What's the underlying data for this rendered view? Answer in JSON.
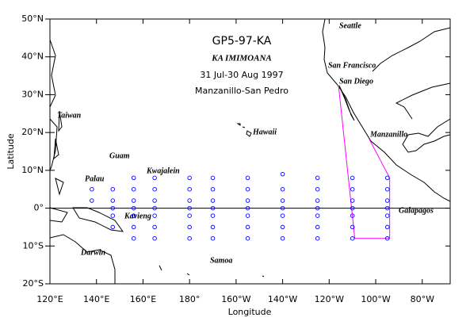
{
  "chart_data": {
    "type": "scatter",
    "title": "GP5-97-KA",
    "subtitle": "KA IMIMOANA",
    "annotations": [
      "31 Jul-30 Aug 1997",
      "Manzanillo-San Pedro"
    ],
    "places": [
      "Seattle",
      "San Francisco",
      "San Diego",
      "Manzanillo",
      "Taiwan",
      "Hawaii",
      "Guam",
      "Palau",
      "Kwajalein",
      "Kavieng",
      "Galapagos",
      "Darwin",
      "Samoa"
    ],
    "x_label": "Longitude",
    "y_label": "Latitude",
    "xlim": [
      120,
      292
    ],
    "ylim": [
      -20,
      50
    ],
    "xticks": [
      {
        "value": 120,
        "label": "120°E"
      },
      {
        "value": 140,
        "label": "140°E"
      },
      {
        "value": 160,
        "label": "160°E"
      },
      {
        "value": 180,
        "label": "180°"
      },
      {
        "value": 200,
        "label": "160°W"
      },
      {
        "value": 220,
        "label": "140°W"
      },
      {
        "value": 240,
        "label": "120°W"
      },
      {
        "value": 260,
        "label": "100°W"
      },
      {
        "value": 280,
        "label": "80°W"
      }
    ],
    "yticks": [
      {
        "value": 50,
        "label": "50°N"
      },
      {
        "value": 40,
        "label": "40°N"
      },
      {
        "value": 30,
        "label": "30°N"
      },
      {
        "value": 20,
        "label": "20°N"
      },
      {
        "value": 10,
        "label": "10°N"
      },
      {
        "value": 0,
        "label": "0°"
      },
      {
        "value": -10,
        "label": "10°S"
      },
      {
        "value": -20,
        "label": "20°S"
      }
    ],
    "series": [
      {
        "color": "#0000ff",
        "mode": "markers",
        "x": [
          138,
          138,
          147,
          147,
          147,
          147,
          147,
          156,
          156,
          156,
          156,
          156,
          156,
          156,
          165,
          165,
          165,
          165,
          165,
          165,
          165,
          180,
          180,
          180,
          180,
          180,
          180,
          180,
          190,
          190,
          190,
          190,
          190,
          190,
          190,
          205,
          205,
          205,
          205,
          205,
          205,
          205,
          220,
          220,
          220,
          220,
          220,
          220,
          220,
          235,
          235,
          235,
          235,
          235,
          235,
          235,
          250,
          250,
          250,
          250,
          250,
          250,
          250,
          265,
          265,
          265,
          265,
          265,
          265,
          265
        ],
        "values": [
          5,
          2,
          5,
          2,
          0,
          -2,
          -5,
          8,
          5,
          2,
          0,
          -2,
          -5,
          -8,
          8,
          5,
          2,
          0,
          -2,
          -5,
          -8,
          8,
          5,
          2,
          0,
          -2,
          -5,
          -8,
          8,
          5,
          2,
          0,
          -2,
          -5,
          -8,
          8,
          5,
          2,
          0,
          -2,
          -5,
          -8,
          9,
          5,
          2,
          0,
          -2,
          -5,
          -8,
          8,
          5,
          2,
          0,
          -2,
          -5,
          -8,
          8,
          5,
          2,
          0,
          -2,
          -5,
          -8,
          8,
          5,
          2,
          0,
          -2,
          -5,
          -8
        ]
      },
      {
        "color": "#ff00ff",
        "mode": "line",
        "x": [
          244,
          251,
          266,
          266,
          257
        ],
        "values": [
          32.5,
          -8,
          -8,
          8,
          18.5
        ]
      }
    ]
  }
}
